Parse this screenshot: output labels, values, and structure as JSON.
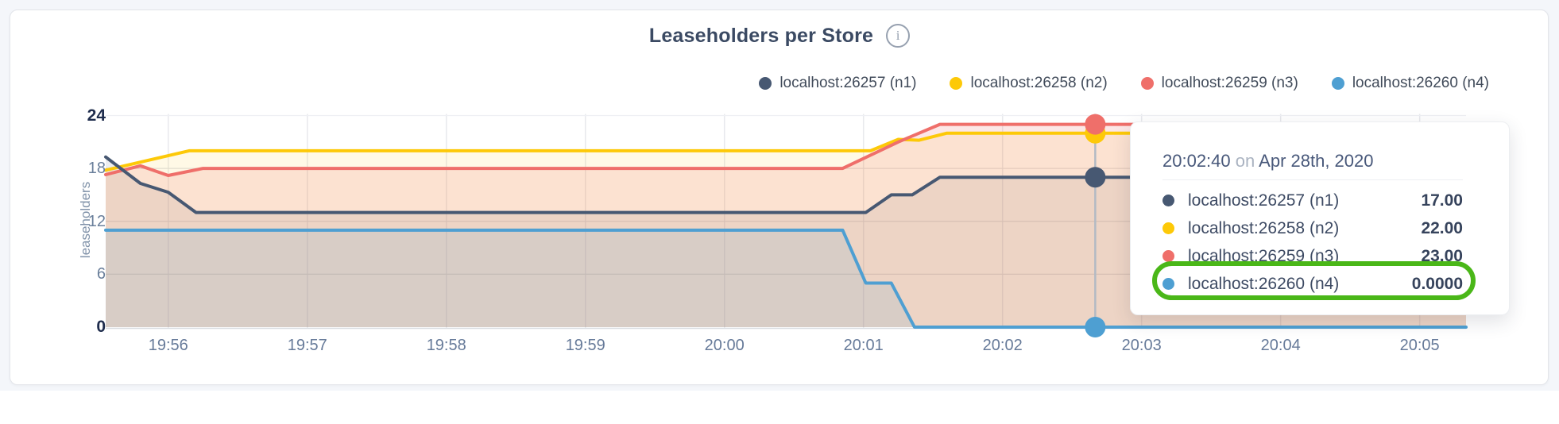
{
  "chart": {
    "title": "Leaseholders per Store",
    "info_icon_glyph": "i",
    "y_axis_label": "leaseholders",
    "y_ticks": [
      {
        "label": "24",
        "value": 24,
        "emphasis": true
      },
      {
        "label": "18",
        "value": 18,
        "emphasis": false
      },
      {
        "label": "12",
        "value": 12,
        "emphasis": false
      },
      {
        "label": "6",
        "value": 6,
        "emphasis": false
      },
      {
        "label": "0",
        "value": 0,
        "emphasis": true
      }
    ],
    "x_ticks": [
      {
        "label": "19:56"
      },
      {
        "label": "19:57"
      },
      {
        "label": "19:58"
      },
      {
        "label": "19:59"
      },
      {
        "label": "20:00"
      },
      {
        "label": "20:01"
      },
      {
        "label": "20:02"
      },
      {
        "label": "20:03"
      },
      {
        "label": "20:04"
      },
      {
        "label": "20:05"
      }
    ],
    "legend": [
      {
        "label": "localhost:26257 (n1)",
        "color": "#475872"
      },
      {
        "label": "localhost:26258 (n2)",
        "color": "#fdc908"
      },
      {
        "label": "localhost:26259 (n3)",
        "color": "#ef6f6a"
      },
      {
        "label": "localhost:26260 (n4)",
        "color": "#4e9fd2"
      }
    ]
  },
  "chart_data": {
    "type": "area",
    "title": "Leaseholders per Store",
    "ylabel": "leaseholders",
    "ylim": [
      0,
      24
    ],
    "x_range": [
      "19:55:33",
      "20:05:20"
    ],
    "grid": "on",
    "legend_position": "top-right",
    "series": [
      {
        "name": "localhost:26257 (n1)",
        "color": "#475872",
        "points": [
          [
            "19:55:33",
            19.3
          ],
          [
            "19:55:48",
            16.3
          ],
          [
            "19:56:00",
            15.3
          ],
          [
            "19:56:12",
            13
          ],
          [
            "20:01:01",
            13
          ],
          [
            "20:01:12",
            15
          ],
          [
            "20:01:21",
            15
          ],
          [
            "20:01:33",
            17
          ],
          [
            "20:05:20",
            17
          ]
        ]
      },
      {
        "name": "localhost:26258 (n2)",
        "color": "#fdc908",
        "points": [
          [
            "19:55:33",
            17.8
          ],
          [
            "19:56:09",
            20
          ],
          [
            "20:01:03",
            20
          ],
          [
            "20:01:15",
            21.3
          ],
          [
            "20:01:24",
            21.2
          ],
          [
            "20:01:36",
            22
          ],
          [
            "20:05:20",
            22
          ]
        ]
      },
      {
        "name": "localhost:26259 (n3)",
        "color": "#ef6f6a",
        "points": [
          [
            "19:55:33",
            17.3
          ],
          [
            "19:55:48",
            18.3
          ],
          [
            "19:56:00",
            17.2
          ],
          [
            "19:56:15",
            18
          ],
          [
            "20:00:51",
            18
          ],
          [
            "20:01:15",
            21
          ],
          [
            "20:01:33",
            23
          ],
          [
            "20:05:20",
            23
          ]
        ]
      },
      {
        "name": "localhost:26260 (n4)",
        "color": "#4e9fd2",
        "points": [
          [
            "19:55:33",
            11
          ],
          [
            "20:00:51",
            11
          ],
          [
            "20:01:01",
            5
          ],
          [
            "20:01:12",
            5
          ],
          [
            "20:01:22",
            0
          ],
          [
            "20:05:20",
            0
          ]
        ]
      }
    ],
    "hover": {
      "time": "20:02:40",
      "values": [
        17,
        22,
        23,
        0
      ]
    }
  },
  "tooltip": {
    "time": "20:02:40",
    "on_word": "on",
    "date": "Apr 28th, 2020",
    "rows": [
      {
        "label": "localhost:26257 (n1)",
        "value": "17.00",
        "color": "#475872"
      },
      {
        "label": "localhost:26258 (n2)",
        "value": "22.00",
        "color": "#fdc908"
      },
      {
        "label": "localhost:26259 (n3)",
        "value": "23.00",
        "color": "#ef6f6a"
      },
      {
        "label": "localhost:26260 (n4)",
        "value": "0.0000",
        "color": "#4e9fd2"
      }
    ],
    "highlight_color": "#4ab718"
  }
}
